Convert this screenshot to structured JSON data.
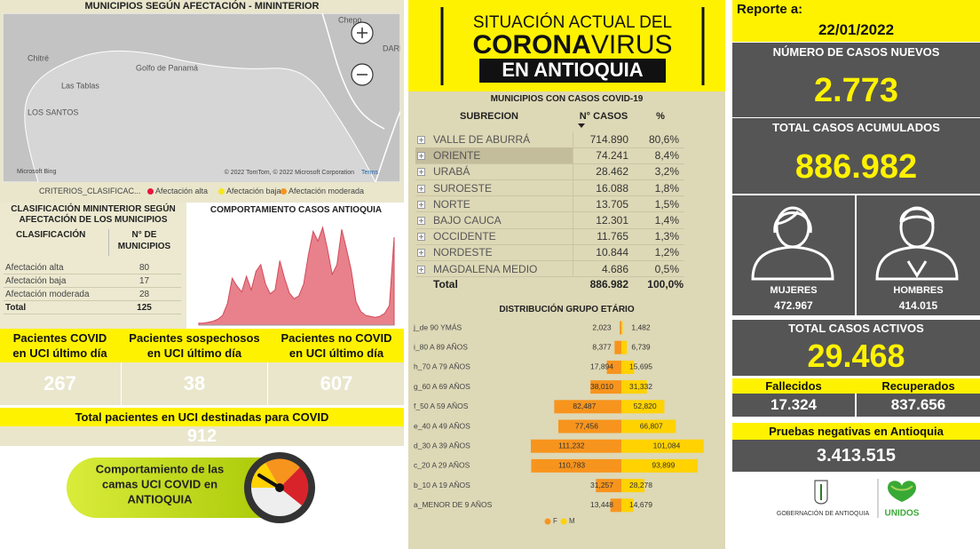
{
  "map": {
    "title": "MUNICIPIOS SEGÚN AFECTACIÓN - MININTERIOR",
    "places": [
      {
        "label": "Chepo"
      },
      {
        "label": "DARIÉN"
      },
      {
        "label": "Chitré"
      },
      {
        "label": "Golfo de Panamá"
      },
      {
        "label": "Las Tablas"
      },
      {
        "label": "LOS SANTOS"
      }
    ],
    "provider": "Microsoft Bing",
    "attribution": "© 2022 TomTom, © 2022 Microsoft Corporation",
    "terms": "Terms",
    "legend_title": "CRITERIOS_CLASIFICAC...",
    "legend": [
      {
        "label": "Afectación alta",
        "color": "#e8173c"
      },
      {
        "label": "Afectación baja",
        "color": "#f5e71a"
      },
      {
        "label": "Afectación moderada",
        "color": "#f7941d"
      }
    ]
  },
  "classification_table": {
    "title": "CLASIFICACIÓN MININTERIOR SEGÚN AFECTACIÓN DE LOS MUNICIPIOS",
    "columns": [
      "CLASIFICACIÓN",
      "N° DE MUNICIPIOS"
    ],
    "rows": [
      [
        "Afectación alta",
        "80"
      ],
      [
        "Afectación baja",
        "17"
      ],
      [
        "Afectación moderada",
        "28"
      ]
    ],
    "total": [
      "Total",
      "125"
    ]
  },
  "chart_data": [
    {
      "type": "area",
      "title": "COMPORTAMIENTO CASOS ANTIOQUIA",
      "color": "#e8818b",
      "values": [
        2,
        2,
        3,
        4,
        6,
        10,
        22,
        48,
        40,
        34,
        50,
        36,
        55,
        62,
        42,
        32,
        36,
        66,
        48,
        33,
        27,
        30,
        42,
        72,
        96,
        86,
        100,
        78,
        52,
        62,
        98,
        78,
        56,
        24,
        14,
        10,
        9,
        8,
        9,
        12,
        20,
        90
      ]
    },
    {
      "type": "pyramid",
      "title": "DISTRIBUCIÓN GRUPO ETÁRIO",
      "categories": [
        "j_de 90 YMÁS",
        "i_80 A 89 AÑOS",
        "h_70 A 79 AÑOS",
        "g_60 A 69 AÑOS",
        "f_50 A 59 AÑOS",
        "e_40 A 49 AÑOS",
        "d_30 A 39 AÑOS",
        "c_20 A 29 AÑOS",
        "b_10 A 19 AÑOS",
        "a_MENOR DE 9 AÑOS"
      ],
      "series": [
        {
          "name": "F",
          "color": "#f7941d",
          "values": [
            2023,
            8377,
            17894,
            38010,
            82487,
            77456,
            111232,
            110783,
            31257,
            13448
          ],
          "value_labels": [
            "2,023",
            "8,377",
            "17,894",
            "38,010",
            "82,487",
            "77,456",
            "111,232",
            "110,783",
            "31,257",
            "13,448"
          ]
        },
        {
          "name": "M",
          "color": "#ffd200",
          "values": [
            1482,
            6739,
            15695,
            31332,
            52820,
            66807,
            101084,
            93899,
            28278,
            14679
          ],
          "value_labels": [
            "1,482",
            "6,739",
            "15,695",
            "31,332",
            "52,820",
            "66,807",
            "101,084",
            "93,899",
            "28,278",
            "14,679"
          ]
        }
      ]
    }
  ],
  "uci": {
    "cards": [
      {
        "label": "Pacientes COVID en UCI último día",
        "value": "267"
      },
      {
        "label": "Pacientes sospechosos en UCI último día",
        "value": "38"
      },
      {
        "label": "Pacientes no COVID en UCI último día",
        "value": "607"
      }
    ],
    "total_label": "Total pacientes en UCI destinadas para COVID",
    "total_value": "912"
  },
  "banner": {
    "lines": [
      "Comportamiento de las",
      "camas UCI COVID en",
      "ANTIOQUIA"
    ]
  },
  "header": {
    "line1": "SITUACIÓN ACTUAL DEL",
    "bold": "CORONA",
    "light": "VIRUS",
    "line3": "EN ANTIOQUIA"
  },
  "municipios_table": {
    "title": "MUNICIPIOS CON CASOS COVID-19",
    "columns": [
      "SUBRECION",
      "N° CASOS",
      "%"
    ],
    "rows": [
      [
        "VALLE DE ABURRÁ",
        "714.890",
        "80,6%"
      ],
      [
        "ORIENTE",
        "74.241",
        "8,4%"
      ],
      [
        "URABÁ",
        "28.462",
        "3,2%"
      ],
      [
        "SUROESTE",
        "16.088",
        "1,8%"
      ],
      [
        "NORTE",
        "13.705",
        "1,5%"
      ],
      [
        "BAJO CAUCA",
        "12.301",
        "1,4%"
      ],
      [
        "OCCIDENTE",
        "11.765",
        "1,3%"
      ],
      [
        "NORDESTE",
        "10.844",
        "1,2%"
      ],
      [
        "MAGDALENA MEDIO",
        "4.686",
        "0,5%"
      ]
    ],
    "total": [
      "Total",
      "886.982",
      "100,0%"
    ]
  },
  "report": {
    "label": "Reporte a:",
    "date": "22/01/2022",
    "new_cases_label": "NÚMERO DE CASOS NUEVOS",
    "new_cases": "2.773",
    "total_label": "TOTAL CASOS ACUMULADOS",
    "total": "886.982",
    "women_label": "MUJERES",
    "women": "472.967",
    "men_label": "HOMBRES",
    "men": "414.015",
    "active_label": "TOTAL CASOS ACTIVOS",
    "active": "29.468",
    "deaths_label": "Fallecidos",
    "deaths": "17.324",
    "recovered_label": "Recuperados",
    "recovered": "837.656",
    "negative_label": "Pruebas negativas en Antioquia",
    "negative": "3.413.515"
  },
  "logos": {
    "gob": "GOBERNACIÓN DE ANTIOQUIA",
    "unidos": "UNIDOS"
  }
}
